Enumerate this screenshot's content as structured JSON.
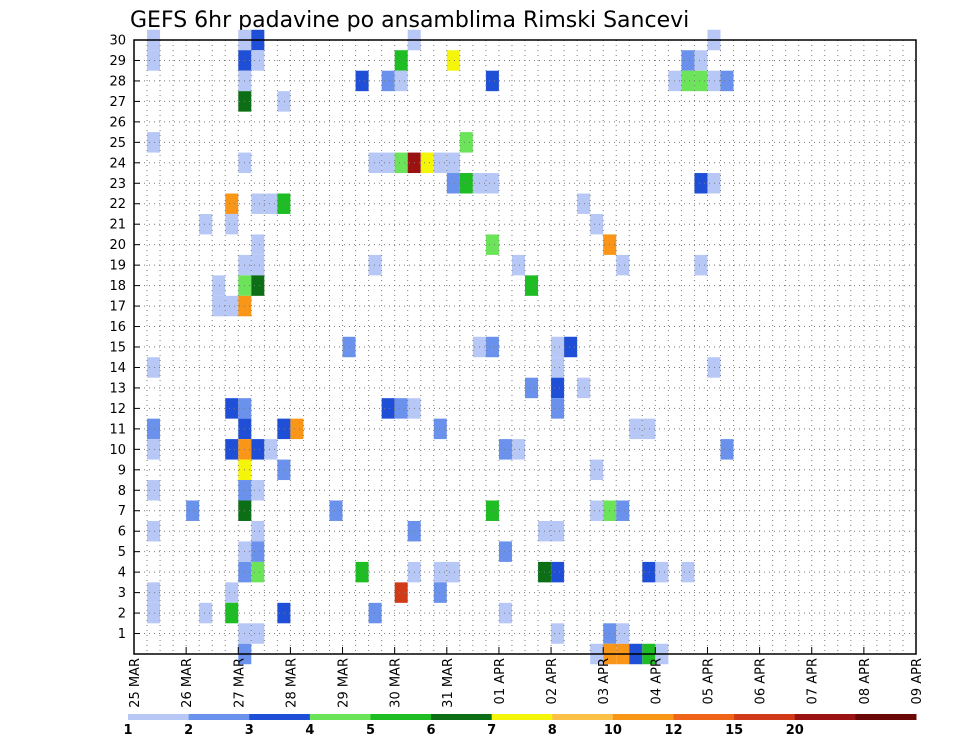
{
  "chart_data": {
    "type": "heatmap",
    "title": "GEFS 6hr padavine po ansamblima Rimski Sancevi",
    "x_tick_labels": [
      "25 MAR",
      "26 MAR",
      "27 MAR",
      "28 MAR",
      "29 MAR",
      "30 MAR",
      "31 MAR",
      "01 APR",
      "02 APR",
      "03 APR",
      "04 APR",
      "05 APR",
      "06 APR",
      "07 APR",
      "08 APR",
      "09 APR"
    ],
    "y_tick_labels": [
      "1",
      "2",
      "3",
      "4",
      "5",
      "6",
      "7",
      "8",
      "9",
      "10",
      "11",
      "12",
      "13",
      "14",
      "15",
      "16",
      "17",
      "18",
      "19",
      "20",
      "21",
      "22",
      "23",
      "24",
      "25",
      "26",
      "27",
      "28",
      "29",
      "30"
    ],
    "xlim": [
      0,
      60
    ],
    "ylim": [
      0,
      30
    ],
    "grid": true,
    "x_unit": "6-hour steps from 25 MAR 00Z",
    "colorbar": {
      "labels": [
        "1",
        "2",
        "3",
        "4",
        "5",
        "6",
        "7",
        "8",
        "10",
        "12",
        "15",
        "20"
      ],
      "colors": [
        "#b8c8f6",
        "#6a92ec",
        "#1f4fd6",
        "#6ce45a",
        "#1dbd23",
        "#0c6e15",
        "#f5f50a",
        "#fcc047",
        "#fa9617",
        "#f0641a",
        "#d03a18",
        "#9b1212",
        "#6a0808"
      ]
    },
    "cells": [
      [
        1,
        30,
        0
      ],
      [
        1,
        29,
        0
      ],
      [
        1,
        25,
        0
      ],
      [
        1,
        14,
        0
      ],
      [
        1,
        11,
        1
      ],
      [
        1,
        10,
        0
      ],
      [
        1,
        8,
        0
      ],
      [
        1,
        6,
        0
      ],
      [
        1,
        3,
        0
      ],
      [
        1,
        2,
        0
      ],
      [
        4,
        7,
        1
      ],
      [
        5,
        21,
        0
      ],
      [
        5,
        2,
        0
      ],
      [
        6,
        18,
        0
      ],
      [
        6,
        17,
        0
      ],
      [
        7,
        22,
        8
      ],
      [
        7,
        21,
        0
      ],
      [
        7,
        17,
        0
      ],
      [
        7,
        12,
        2
      ],
      [
        7,
        10,
        2
      ],
      [
        7,
        3,
        0
      ],
      [
        7,
        2,
        4
      ],
      [
        8,
        30,
        0
      ],
      [
        8,
        29,
        2
      ],
      [
        8,
        28,
        0
      ],
      [
        8,
        27,
        5
      ],
      [
        8,
        24,
        0
      ],
      [
        8,
        19,
        0
      ],
      [
        8,
        18,
        3
      ],
      [
        8,
        17,
        8
      ],
      [
        8,
        12,
        1
      ],
      [
        8,
        11,
        2
      ],
      [
        8,
        10,
        8
      ],
      [
        8,
        9,
        6
      ],
      [
        8,
        8,
        1
      ],
      [
        8,
        7,
        5
      ],
      [
        8,
        5,
        0
      ],
      [
        8,
        4,
        1
      ],
      [
        8,
        1,
        0
      ],
      [
        8,
        0,
        1
      ],
      [
        9,
        30,
        2
      ],
      [
        9,
        29,
        0
      ],
      [
        9,
        22,
        0
      ],
      [
        9,
        20,
        0
      ],
      [
        9,
        19,
        0
      ],
      [
        9,
        18,
        5
      ],
      [
        9,
        10,
        2
      ],
      [
        9,
        8,
        0
      ],
      [
        9,
        6,
        0
      ],
      [
        9,
        5,
        1
      ],
      [
        9,
        4,
        3
      ],
      [
        9,
        1,
        0
      ],
      [
        10,
        22,
        0
      ],
      [
        10,
        10,
        0
      ],
      [
        11,
        27,
        0
      ],
      [
        11,
        22,
        4
      ],
      [
        11,
        11,
        2
      ],
      [
        11,
        9,
        1
      ],
      [
        11,
        2,
        2
      ],
      [
        12,
        11,
        8
      ],
      [
        15,
        7,
        1
      ],
      [
        16,
        15,
        1
      ],
      [
        17,
        28,
        2
      ],
      [
        17,
        4,
        4
      ],
      [
        18,
        24,
        0
      ],
      [
        18,
        19,
        0
      ],
      [
        18,
        2,
        1
      ],
      [
        19,
        28,
        1
      ],
      [
        19,
        24,
        0
      ],
      [
        19,
        12,
        2
      ],
      [
        20,
        29,
        4
      ],
      [
        20,
        28,
        0
      ],
      [
        20,
        24,
        3
      ],
      [
        20,
        12,
        1
      ],
      [
        20,
        3,
        10
      ],
      [
        21,
        30,
        0
      ],
      [
        21,
        24,
        11
      ],
      [
        21,
        12,
        0
      ],
      [
        21,
        6,
        1
      ],
      [
        21,
        4,
        0
      ],
      [
        22,
        24,
        6
      ],
      [
        23,
        24,
        0
      ],
      [
        23,
        11,
        1
      ],
      [
        23,
        4,
        0
      ],
      [
        23,
        3,
        1
      ],
      [
        24,
        29,
        6
      ],
      [
        24,
        24,
        0
      ],
      [
        24,
        23,
        1
      ],
      [
        24,
        4,
        0
      ],
      [
        25,
        25,
        3
      ],
      [
        25,
        23,
        4
      ],
      [
        26,
        23,
        0
      ],
      [
        26,
        15,
        0
      ],
      [
        27,
        28,
        2
      ],
      [
        27,
        23,
        0
      ],
      [
        27,
        20,
        3
      ],
      [
        27,
        15,
        1
      ],
      [
        27,
        7,
        4
      ],
      [
        28,
        10,
        1
      ],
      [
        28,
        5,
        1
      ],
      [
        28,
        2,
        0
      ],
      [
        29,
        19,
        0
      ],
      [
        29,
        10,
        0
      ],
      [
        30,
        18,
        4
      ],
      [
        30,
        13,
        1
      ],
      [
        31,
        6,
        0
      ],
      [
        31,
        4,
        5
      ],
      [
        32,
        15,
        0
      ],
      [
        32,
        14,
        0
      ],
      [
        32,
        13,
        2
      ],
      [
        32,
        12,
        1
      ],
      [
        32,
        6,
        0
      ],
      [
        32,
        1,
        0
      ],
      [
        32,
        4,
        2
      ],
      [
        33,
        15,
        2
      ],
      [
        34,
        22,
        0
      ],
      [
        34,
        13,
        0
      ],
      [
        35,
        21,
        0
      ],
      [
        35,
        9,
        0
      ],
      [
        35,
        7,
        0
      ],
      [
        35,
        0,
        0
      ],
      [
        36,
        20,
        8
      ],
      [
        36,
        7,
        3
      ],
      [
        36,
        1,
        1
      ],
      [
        36,
        0,
        8
      ],
      [
        37,
        19,
        0
      ],
      [
        37,
        7,
        1
      ],
      [
        37,
        1,
        0
      ],
      [
        37,
        0,
        8
      ],
      [
        38,
        11,
        0
      ],
      [
        38,
        0,
        2
      ],
      [
        39,
        11,
        0
      ],
      [
        39,
        4,
        2
      ],
      [
        39,
        0,
        4
      ],
      [
        40,
        4,
        0
      ],
      [
        40,
        0,
        0
      ],
      [
        41,
        28,
        0
      ],
      [
        42,
        29,
        1
      ],
      [
        42,
        28,
        3
      ],
      [
        42,
        4,
        0
      ],
      [
        43,
        29,
        0
      ],
      [
        43,
        28,
        3
      ],
      [
        43,
        23,
        2
      ],
      [
        43,
        19,
        0
      ],
      [
        44,
        30,
        0
      ],
      [
        44,
        28,
        0
      ],
      [
        44,
        23,
        0
      ],
      [
        44,
        14,
        0
      ],
      [
        45,
        28,
        1
      ],
      [
        45,
        10,
        1
      ]
    ]
  }
}
